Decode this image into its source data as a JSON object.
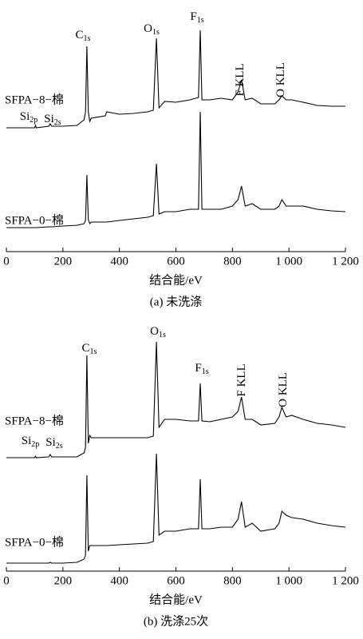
{
  "chart_data": [
    {
      "type": "line",
      "xlabel": "结合能/eV",
      "caption": "(a) 未洗涤",
      "xlim": [
        0,
        1200
      ],
      "xticks": [
        0,
        200,
        400,
        600,
        800,
        {
          "value": 1000,
          "label": "1 000"
        },
        {
          "value": 1200,
          "label": "1 200"
        }
      ],
      "ylim": [
        0,
        285
      ],
      "annotations": [
        {
          "text": "C",
          "sub": "1s"
        },
        {
          "text": "O",
          "sub": "1s"
        },
        {
          "text": "F",
          "sub": "1s"
        },
        {
          "text": "F KLL"
        },
        {
          "text": "O KLL"
        },
        {
          "text": "Si",
          "sub": "2p"
        },
        {
          "text": "Si",
          "sub": "2s"
        }
      ],
      "x": [
        0,
        100,
        103,
        106,
        150,
        155,
        160,
        200,
        250,
        275,
        280,
        285,
        290,
        295,
        300,
        350,
        355,
        400,
        450,
        500,
        520,
        531,
        540,
        560,
        600,
        650,
        680,
        686,
        692,
        720,
        760,
        800,
        820,
        832,
        845,
        870,
        900,
        950,
        965,
        975,
        990,
        1010,
        1050,
        1100,
        1150,
        1200
      ],
      "series": [
        {
          "name": "SFPA−8−棉",
          "color": "#000000",
          "values": [
            155,
            155,
            158,
            155,
            157,
            160,
            157,
            157,
            158,
            165,
            175,
            257,
            175,
            163,
            167,
            170,
            175,
            172,
            173,
            175,
            177,
            267,
            180,
            188,
            187,
            190,
            193,
            277,
            190,
            190,
            192,
            190,
            200,
            215,
            190,
            192,
            185,
            185,
            190,
            195,
            190,
            190,
            187,
            183,
            182,
            182
          ]
        },
        {
          "name": "SFPA−0−棉",
          "color": "#000000",
          "values": [
            30,
            30,
            30,
            30,
            31,
            31,
            31,
            32,
            33,
            35,
            39,
            96,
            40,
            35,
            37,
            37,
            37,
            39,
            41,
            43,
            45,
            110,
            47,
            50,
            50,
            53,
            53,
            175,
            53,
            53,
            53,
            57,
            65,
            82,
            57,
            60,
            53,
            53,
            57,
            65,
            57,
            57,
            57,
            53,
            51,
            50
          ]
        }
      ]
    },
    {
      "type": "line",
      "xlabel": "结合能/eV",
      "caption": "(b) 洗涤25次",
      "xlim": [
        0,
        1200
      ],
      "xticks": [
        0,
        200,
        400,
        600,
        800,
        {
          "value": 1000,
          "label": "1 000"
        },
        {
          "value": 1200,
          "label": "1 200"
        }
      ],
      "ylim": [
        0,
        295
      ],
      "annotations": [
        {
          "text": "C",
          "sub": "1s"
        },
        {
          "text": "O",
          "sub": "1s"
        },
        {
          "text": "F",
          "sub": "1s"
        },
        {
          "text": "F KLL"
        },
        {
          "text": "O KLL"
        },
        {
          "text": "Si",
          "sub": "2p"
        },
        {
          "text": "Si",
          "sub": "2s"
        }
      ],
      "x": [
        0,
        100,
        103,
        106,
        150,
        155,
        160,
        200,
        250,
        275,
        280,
        285,
        290,
        295,
        300,
        350,
        355,
        400,
        450,
        500,
        520,
        531,
        540,
        560,
        600,
        650,
        680,
        686,
        692,
        720,
        760,
        800,
        820,
        832,
        845,
        870,
        900,
        950,
        965,
        975,
        990,
        1010,
        1050,
        1100,
        1150,
        1200
      ],
      "series": [
        {
          "name": "SFPA−8−棉",
          "color": "#000000",
          "values": [
            142,
            142,
            144,
            142,
            143,
            146,
            143,
            143,
            143,
            148,
            155,
            270,
            160,
            170,
            167,
            167,
            167,
            167,
            167,
            167,
            169,
            287,
            180,
            190,
            190,
            188,
            188,
            235,
            188,
            187,
            190,
            193,
            200,
            218,
            190,
            190,
            183,
            185,
            193,
            205,
            193,
            195,
            190,
            185,
            183,
            180
          ]
        },
        {
          "name": "SFPA−0−棉",
          "color": "#000000",
          "values": [
            10,
            10,
            10,
            10,
            10,
            11,
            10,
            10,
            11,
            15,
            20,
            120,
            25,
            32,
            32,
            32,
            32,
            33,
            34,
            35,
            37,
            147,
            45,
            50,
            50,
            53,
            53,
            115,
            53,
            53,
            55,
            55,
            65,
            87,
            55,
            60,
            50,
            53,
            60,
            75,
            70,
            67,
            65,
            60,
            57,
            55
          ]
        }
      ]
    }
  ]
}
